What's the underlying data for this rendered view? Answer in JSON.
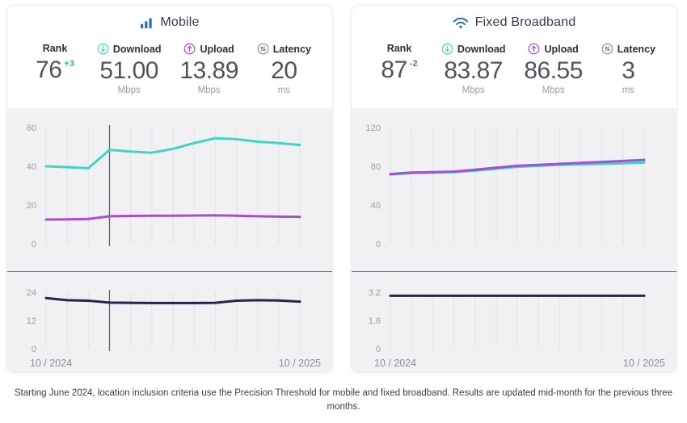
{
  "colors": {
    "accent_blue": "#2e6cb5",
    "teal": "#3ed6c3",
    "purple": "#a44fd4",
    "navy": "#23274a",
    "delta_positive": "#3cb86a",
    "delta_negative": "#e0484f"
  },
  "panels": [
    {
      "id": "mobile",
      "title": "Mobile",
      "icon": "mobile-signal-bars-icon",
      "stats": [
        {
          "label": "Rank",
          "value": "76",
          "delta": "+3",
          "unit": ""
        },
        {
          "label": "Download",
          "value": "51.00",
          "unit": "Mbps"
        },
        {
          "label": "Upload",
          "value": "13.89",
          "unit": "Mbps"
        },
        {
          "label": "Latency",
          "value": "20",
          "unit": "ms"
        }
      ]
    },
    {
      "id": "fixed-broadband",
      "title": "Fixed Broadband",
      "icon": "wifi-icon",
      "stats": [
        {
          "label": "Rank",
          "value": "87",
          "delta": "-2",
          "unit": ""
        },
        {
          "label": "Download",
          "value": "83.87",
          "unit": "Mbps"
        },
        {
          "label": "Upload",
          "value": "86.55",
          "unit": "Mbps"
        },
        {
          "label": "Latency",
          "value": "3",
          "unit": "ms"
        }
      ]
    }
  ],
  "chart_data": [
    {
      "id": "mobile-speed",
      "type": "line",
      "x": [
        "10/2024",
        "11/2024",
        "12/2024",
        "01/2025",
        "02/2025",
        "03/2025",
        "04/2025",
        "05/2025",
        "06/2025",
        "07/2025",
        "08/2025",
        "09/2025",
        "10/2025"
      ],
      "ylim": [
        0,
        60
      ],
      "yticks": [
        0,
        20,
        40,
        60
      ],
      "grid": "vertical",
      "legend": "none",
      "marker_x": 3,
      "series": [
        {
          "name": "Download (Mbps)",
          "color": "#3ed6c3",
          "values": [
            40,
            39.6,
            39,
            48.5,
            47.6,
            47,
            49,
            52,
            54.5,
            54,
            52.7,
            52,
            51
          ]
        },
        {
          "name": "Upload (Mbps)",
          "color": "#a44fd4",
          "values": [
            12.5,
            12.6,
            12.8,
            14.2,
            14.4,
            14.5,
            14.5,
            14.6,
            14.7,
            14.5,
            14.2,
            14,
            13.89
          ]
        }
      ]
    },
    {
      "id": "mobile-latency",
      "type": "line",
      "x": [
        "10/2024",
        "11/2024",
        "12/2024",
        "01/2025",
        "02/2025",
        "03/2025",
        "04/2025",
        "05/2025",
        "06/2025",
        "07/2025",
        "08/2025",
        "09/2025",
        "10/2025"
      ],
      "ylim": [
        0,
        24
      ],
      "yticks": [
        0,
        12,
        24
      ],
      "grid": "vertical",
      "legend": "none",
      "marker_x": 3,
      "x_tick_labels": [
        "10 / 2024",
        "10 / 2025"
      ],
      "series": [
        {
          "name": "Latency (ms)",
          "color": "#23274a",
          "values": [
            21.5,
            20.6,
            20.4,
            19.6,
            19.5,
            19.4,
            19.4,
            19.4,
            19.5,
            20.4,
            20.6,
            20.5,
            20
          ]
        }
      ]
    },
    {
      "id": "fixed-speed",
      "type": "line",
      "x": [
        "10/2024",
        "11/2024",
        "12/2024",
        "01/2025",
        "02/2025",
        "03/2025",
        "04/2025",
        "05/2025",
        "06/2025",
        "07/2025",
        "08/2025",
        "09/2025",
        "10/2025"
      ],
      "ylim": [
        0,
        120
      ],
      "yticks": [
        0,
        40,
        80,
        120
      ],
      "grid": "vertical",
      "legend": "none",
      "marker_x": null,
      "series": [
        {
          "name": "Download (Mbps)",
          "color": "#3ed6c3",
          "values": [
            71.5,
            73,
            73.5,
            74,
            75.5,
            77.5,
            79.5,
            80.5,
            81.5,
            82,
            82.5,
            83,
            83.87
          ]
        },
        {
          "name": "Upload (Mbps)",
          "color": "#a44fd4",
          "values": [
            72,
            73.5,
            74,
            74.5,
            76.5,
            78.5,
            80.5,
            81.5,
            82.5,
            83.5,
            84.5,
            85.5,
            86.55
          ]
        }
      ]
    },
    {
      "id": "fixed-latency",
      "type": "line",
      "x": [
        "10/2024",
        "11/2024",
        "12/2024",
        "01/2025",
        "02/2025",
        "03/2025",
        "04/2025",
        "05/2025",
        "06/2025",
        "07/2025",
        "08/2025",
        "09/2025",
        "10/2025"
      ],
      "ylim": [
        0,
        3.2
      ],
      "yticks": [
        0,
        1.6,
        3.2
      ],
      "grid": "vertical",
      "legend": "none",
      "marker_x": null,
      "x_tick_labels": [
        "10 / 2024",
        "10 / 2025"
      ],
      "series": [
        {
          "name": "Latency (ms)",
          "color": "#23274a",
          "values": [
            3,
            3,
            3,
            3,
            3,
            3,
            3,
            3,
            3,
            3,
            3,
            3,
            3
          ]
        }
      ]
    }
  ],
  "footnote": "Starting June 2024, location inclusion criteria use the Precision Threshold for mobile and fixed broadband. Results are updated mid-month for the previous three months."
}
